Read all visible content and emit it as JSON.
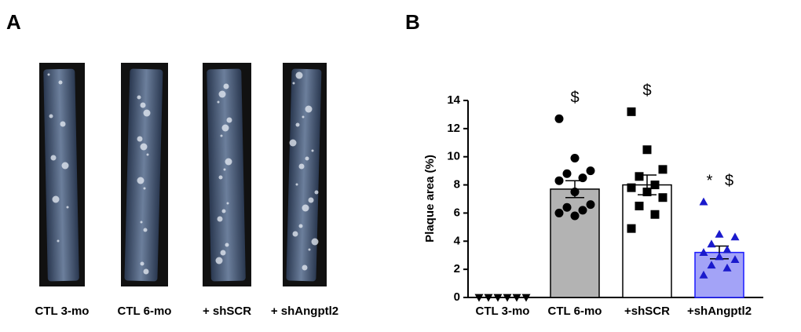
{
  "panel_a": {
    "label": "A",
    "images": [
      {
        "label": "CTL 3-mo"
      },
      {
        "label": "CTL 6-mo"
      },
      {
        "label": "+ shSCR"
      },
      {
        "label": "+ shAngptl2"
      }
    ]
  },
  "chart_data": {
    "type": "bar",
    "panel_label": "B",
    "ylabel": "Plaque area (%)",
    "categories": [
      "CTL 3-mo",
      "CTL 6-mo",
      "+shSCR",
      "+shAngptl2"
    ],
    "values": [
      0,
      7.7,
      8.0,
      3.2
    ],
    "errors": [
      0,
      0.6,
      0.7,
      0.45
    ],
    "bar_colors": [
      "#b3b3b3",
      "#b3b3b3",
      "#ffffff",
      "#a3a3f7"
    ],
    "edge_colors": [
      "#000000",
      "#000000",
      "#000000",
      "#1a1aff"
    ],
    "markers": [
      "triangle-down",
      "circle",
      "square",
      "triangle"
    ],
    "point_colors": [
      "#000000",
      "#000000",
      "#000000",
      "#1a1acc"
    ],
    "points": [
      [
        0,
        0,
        0,
        0,
        0,
        0
      ],
      [
        12.7,
        9.9,
        9.0,
        8.8,
        8.5,
        8.3,
        7.5,
        6.6,
        6.4,
        6.2,
        6.0,
        5.8
      ],
      [
        13.2,
        10.5,
        9.1,
        8.6,
        8.0,
        7.8,
        7.5,
        7.1,
        6.5,
        5.9,
        4.9
      ],
      [
        6.8,
        4.5,
        4.3,
        3.8,
        3.4,
        3.2,
        2.9,
        2.7,
        2.3,
        2.1,
        1.6
      ]
    ],
    "annotations": [
      [],
      [
        "$"
      ],
      [
        "$"
      ],
      [
        "*",
        "$"
      ]
    ],
    "ylim": [
      0,
      14
    ],
    "yticks": [
      0,
      2,
      4,
      6,
      8,
      10,
      12,
      14
    ]
  }
}
